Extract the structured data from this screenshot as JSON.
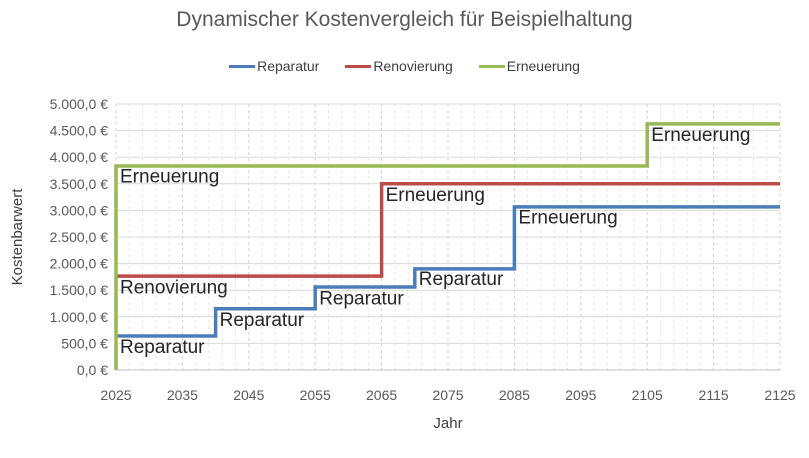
{
  "chart_data": {
    "type": "line",
    "step": true,
    "title": "Dynamischer Kostenvergleich für Beispielhaltung",
    "xlabel": "Jahr",
    "ylabel": "Kostenbarwert",
    "xlim": [
      2025,
      2125
    ],
    "ylim": [
      0,
      5000
    ],
    "x_ticks": [
      "2025",
      "2035",
      "2045",
      "2055",
      "2065",
      "2075",
      "2085",
      "2095",
      "2105",
      "2115",
      "2125"
    ],
    "y_ticks": [
      "0,0 €",
      "500,0 €",
      "1.000,0 €",
      "1.500,0 €",
      "2.000,0 €",
      "2.500,0 €",
      "3.000,0 €",
      "3.500,0 €",
      "4.000,0 €",
      "4.500,0 €",
      "5.000,0 €"
    ],
    "grid": true,
    "legend_position": "top",
    "series": [
      {
        "name": "Reparatur",
        "color": "#4a7ebb",
        "points": [
          [
            2025,
            640
          ],
          [
            2040,
            640
          ],
          [
            2040,
            1150
          ],
          [
            2055,
            1150
          ],
          [
            2055,
            1560
          ],
          [
            2070,
            1560
          ],
          [
            2070,
            1900
          ],
          [
            2085,
            1900
          ],
          [
            2085,
            3065
          ],
          [
            2125,
            3065
          ]
        ]
      },
      {
        "name": "Renovierung",
        "color": "#be4b48",
        "points": [
          [
            2025,
            1765
          ],
          [
            2065,
            1765
          ],
          [
            2065,
            3500
          ],
          [
            2125,
            3500
          ]
        ]
      },
      {
        "name": "Erneuerung",
        "color": "#98b954",
        "points": [
          [
            2025,
            0
          ],
          [
            2025,
            3835
          ],
          [
            2105,
            3835
          ],
          [
            2105,
            4625
          ],
          [
            2125,
            4625
          ]
        ]
      }
    ],
    "annotations": [
      {
        "text": "Reparatur",
        "x": 2025,
        "y": 320
      },
      {
        "text": "Reparatur",
        "x": 2040,
        "y": 830
      },
      {
        "text": "Reparatur",
        "x": 2055,
        "y": 1230
      },
      {
        "text": "Reparatur",
        "x": 2070,
        "y": 1600
      },
      {
        "text": "Erneuerung",
        "x": 2085,
        "y": 2750
      },
      {
        "text": "Renovierung",
        "x": 2025,
        "y": 1440
      },
      {
        "text": "Erneuerung",
        "x": 2065,
        "y": 3180
      },
      {
        "text": "Erneuerung",
        "x": 2025,
        "y": 3520
      },
      {
        "text": "Erneuerung",
        "x": 2105,
        "y": 4300
      }
    ]
  }
}
